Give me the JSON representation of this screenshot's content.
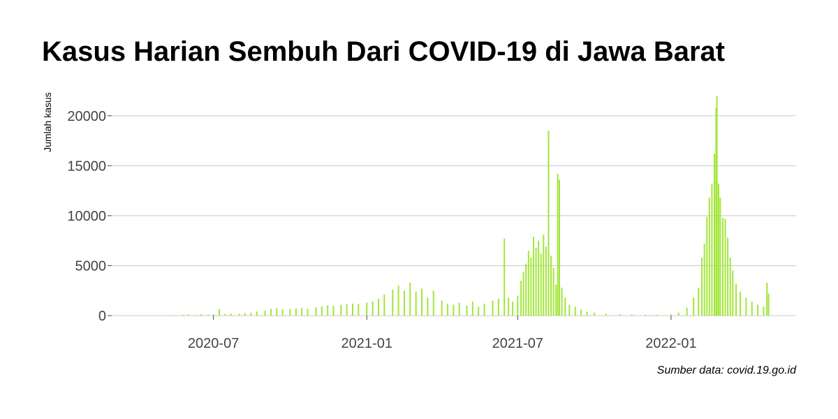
{
  "chart_data": {
    "type": "bar",
    "title": "Kasus Harian Sembuh Dari COVID-19 di Jawa Barat",
    "xlabel": "",
    "ylabel": "Jumlah kasus",
    "caption": "Sumber data: covid.19.go.id",
    "xlim": [
      "2020-03-01",
      "2022-05-31"
    ],
    "ylim": [
      0,
      22500
    ],
    "yticks": [
      0,
      5000,
      10000,
      15000,
      20000
    ],
    "xticks": [
      "2020-07",
      "2021-01",
      "2021-07",
      "2022-01"
    ],
    "grid": true,
    "color": "#a2e63a",
    "series": [
      {
        "values": [
          [
            "2020-05-15",
            40
          ],
          [
            "2020-05-26",
            90
          ],
          [
            "2020-06-01",
            120
          ],
          [
            "2020-06-10",
            60
          ],
          [
            "2020-06-16",
            150
          ],
          [
            "2020-06-25",
            100
          ],
          [
            "2020-07-01",
            130
          ],
          [
            "2020-07-08",
            650
          ],
          [
            "2020-07-15",
            160
          ],
          [
            "2020-07-22",
            200
          ],
          [
            "2020-08-01",
            180
          ],
          [
            "2020-08-08",
            250
          ],
          [
            "2020-08-15",
            300
          ],
          [
            "2020-08-22",
            420
          ],
          [
            "2020-09-01",
            500
          ],
          [
            "2020-09-08",
            680
          ],
          [
            "2020-09-15",
            750
          ],
          [
            "2020-09-22",
            620
          ],
          [
            "2020-10-01",
            640
          ],
          [
            "2020-10-08",
            700
          ],
          [
            "2020-10-15",
            780
          ],
          [
            "2020-10-22",
            680
          ],
          [
            "2020-11-01",
            850
          ],
          [
            "2020-11-08",
            940
          ],
          [
            "2020-11-15",
            1020
          ],
          [
            "2020-11-22",
            980
          ],
          [
            "2020-12-01",
            1080
          ],
          [
            "2020-12-08",
            1140
          ],
          [
            "2020-12-15",
            1200
          ],
          [
            "2020-12-22",
            1150
          ],
          [
            "2021-01-01",
            1300
          ],
          [
            "2021-01-08",
            1420
          ],
          [
            "2021-01-15",
            1700
          ],
          [
            "2021-01-22",
            2100
          ],
          [
            "2021-02-01",
            2600
          ],
          [
            "2021-02-08",
            3000
          ],
          [
            "2021-02-15",
            2500
          ],
          [
            "2021-02-22",
            3300
          ],
          [
            "2021-03-01",
            2400
          ],
          [
            "2021-03-08",
            2700
          ],
          [
            "2021-03-15",
            1800
          ],
          [
            "2021-03-22",
            2500
          ],
          [
            "2021-04-01",
            1500
          ],
          [
            "2021-04-08",
            1200
          ],
          [
            "2021-04-15",
            1100
          ],
          [
            "2021-04-22",
            1300
          ],
          [
            "2021-05-01",
            1000
          ],
          [
            "2021-05-08",
            1400
          ],
          [
            "2021-05-15",
            900
          ],
          [
            "2021-05-22",
            1200
          ],
          [
            "2021-06-01",
            1500
          ],
          [
            "2021-06-08",
            1700
          ],
          [
            "2021-06-15",
            7700
          ],
          [
            "2021-06-20",
            1800
          ],
          [
            "2021-06-25",
            1400
          ],
          [
            "2021-07-01",
            2000
          ],
          [
            "2021-07-05",
            3500
          ],
          [
            "2021-07-08",
            4400
          ],
          [
            "2021-07-11",
            5200
          ],
          [
            "2021-07-14",
            6500
          ],
          [
            "2021-07-17",
            5800
          ],
          [
            "2021-07-20",
            7900
          ],
          [
            "2021-07-23",
            6800
          ],
          [
            "2021-07-26",
            7500
          ],
          [
            "2021-07-29",
            6200
          ],
          [
            "2021-08-01",
            8100
          ],
          [
            "2021-08-04",
            6900
          ],
          [
            "2021-08-07",
            18500
          ],
          [
            "2021-08-10",
            6000
          ],
          [
            "2021-08-13",
            4800
          ],
          [
            "2021-08-16",
            3100
          ],
          [
            "2021-08-18",
            14200
          ],
          [
            "2021-08-20",
            13600
          ],
          [
            "2021-08-23",
            2800
          ],
          [
            "2021-08-27",
            1800
          ],
          [
            "2021-09-01",
            1100
          ],
          [
            "2021-09-08",
            900
          ],
          [
            "2021-09-15",
            600
          ],
          [
            "2021-09-22",
            400
          ],
          [
            "2021-10-01",
            300
          ],
          [
            "2021-10-15",
            200
          ],
          [
            "2021-11-01",
            150
          ],
          [
            "2021-11-15",
            120
          ],
          [
            "2021-12-01",
            100
          ],
          [
            "2021-12-15",
            90
          ],
          [
            "2022-01-01",
            120
          ],
          [
            "2022-01-10",
            300
          ],
          [
            "2022-01-20",
            800
          ],
          [
            "2022-01-28",
            1800
          ],
          [
            "2022-02-03",
            2800
          ],
          [
            "2022-02-07",
            5800
          ],
          [
            "2022-02-10",
            7200
          ],
          [
            "2022-02-13",
            9900
          ],
          [
            "2022-02-16",
            11800
          ],
          [
            "2022-02-19",
            13200
          ],
          [
            "2022-02-22",
            16200
          ],
          [
            "2022-02-24",
            20800
          ],
          [
            "2022-02-25",
            22000
          ],
          [
            "2022-02-27",
            13200
          ],
          [
            "2022-03-01",
            11800
          ],
          [
            "2022-03-04",
            9800
          ],
          [
            "2022-03-07",
            9700
          ],
          [
            "2022-03-10",
            7800
          ],
          [
            "2022-03-13",
            5800
          ],
          [
            "2022-03-16",
            4500
          ],
          [
            "2022-03-20",
            3200
          ],
          [
            "2022-03-25",
            2400
          ],
          [
            "2022-04-01",
            1800
          ],
          [
            "2022-04-08",
            1400
          ],
          [
            "2022-04-15",
            1100
          ],
          [
            "2022-04-22",
            900
          ],
          [
            "2022-04-26",
            3300
          ],
          [
            "2022-04-28",
            2200
          ]
        ]
      }
    ]
  }
}
